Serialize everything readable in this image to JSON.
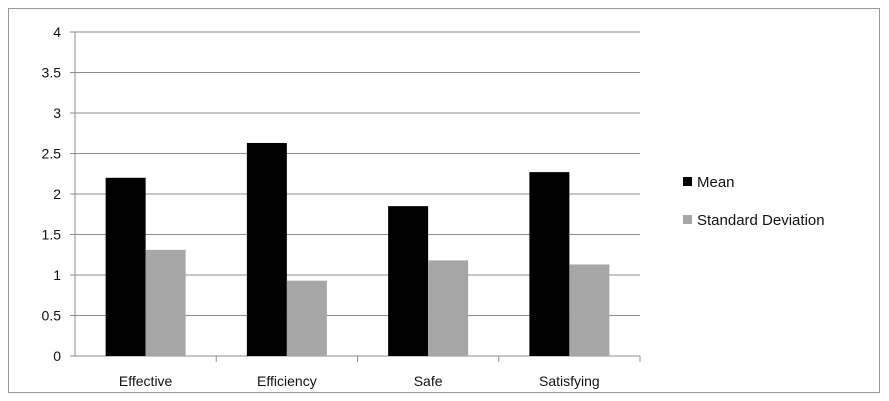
{
  "chart_data": {
    "type": "bar",
    "title": "",
    "xlabel": "",
    "ylabel": "",
    "categories": [
      "Effective",
      "Efficiency",
      "Safe",
      "Satisfying"
    ],
    "series": [
      {
        "name": "Mean",
        "values": [
          2.2,
          2.63,
          1.85,
          2.27
        ],
        "color": "#000000"
      },
      {
        "name": "Standard Deviation",
        "values": [
          1.31,
          0.93,
          1.18,
          1.13
        ],
        "color": "#a6a6a6"
      }
    ],
    "ylim": [
      0,
      4
    ],
    "yticks": [
      "0",
      "0.5",
      "1",
      "1.5",
      "2",
      "2.5",
      "3",
      "3.5",
      "4"
    ],
    "grid": true,
    "legend_position": "right"
  }
}
